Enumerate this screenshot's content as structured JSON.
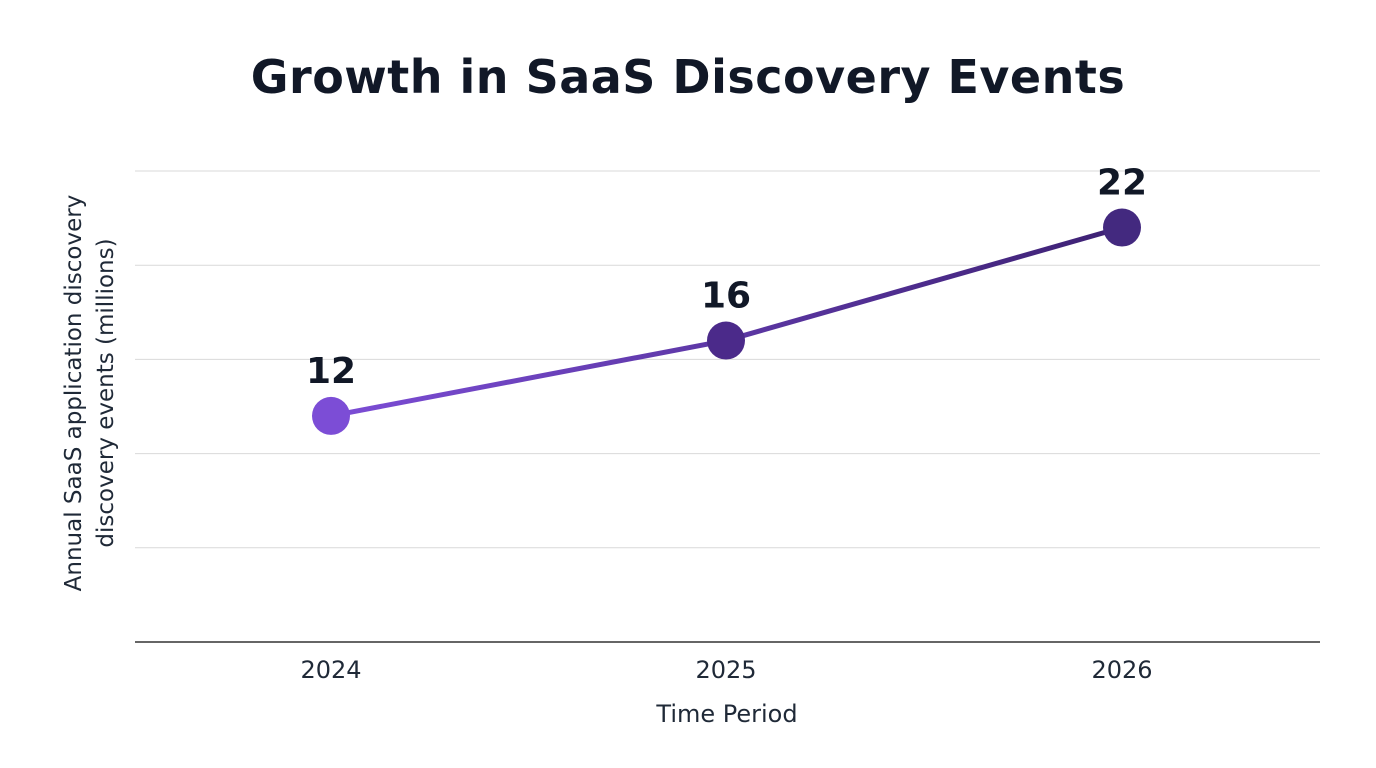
{
  "chart_data": {
    "type": "line",
    "title": "Growth in SaaS Discovery Events",
    "xlabel": "Time Period",
    "ylabel": "Annual SaaS application discovery discovery events (millions)",
    "categories": [
      "2024",
      "2025",
      "2026"
    ],
    "series": [
      {
        "values": [
          12,
          16,
          22
        ]
      }
    ],
    "data_labels": [
      "12",
      "16",
      "22"
    ],
    "ylim": [
      0,
      25
    ],
    "grid": true,
    "legend": "none"
  },
  "colors": {
    "line_start": "#7c4dd6",
    "line_end": "#3d2173",
    "point_1": "#7c4dd6",
    "point_2": "#4b2a8a",
    "point_3": "#43297f",
    "grid": "#d9d9d9",
    "axis": "#333333",
    "text": "#111827"
  }
}
